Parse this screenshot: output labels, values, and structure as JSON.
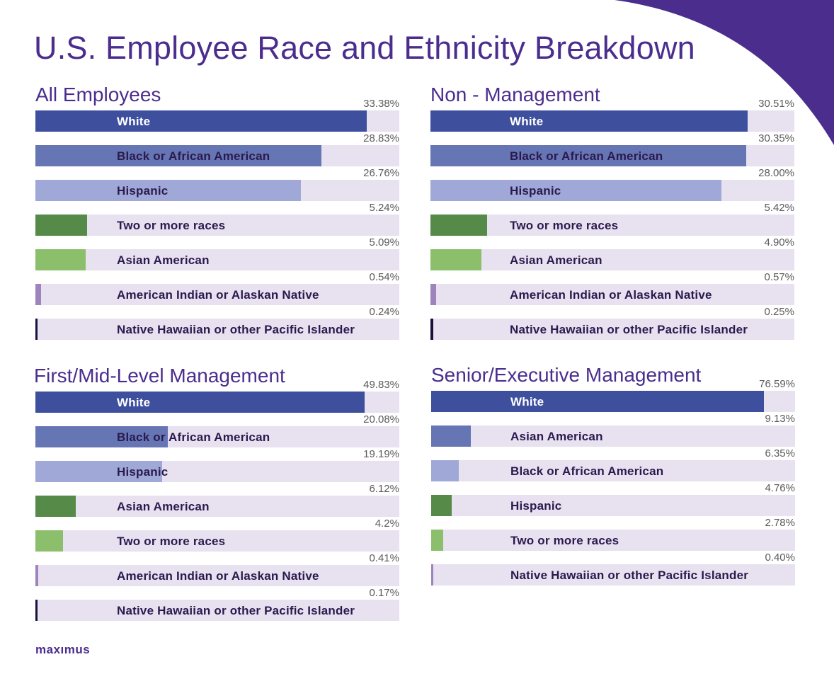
{
  "page": {
    "title": "U.S. Employee Race and Ethnicity Breakdown",
    "logo": "maxımus"
  },
  "colors": {
    "accent": "#4b2d8e",
    "track": "#e8e1ef",
    "label_dark": "#2a1a4e",
    "palette": [
      "#3e4f9e",
      "#6675b4",
      "#9fa8d6",
      "#568a48",
      "#8cbf6c",
      "#9e84bd",
      "#1a1040"
    ]
  },
  "chart_data": [
    {
      "type": "bar",
      "title": "All Employees",
      "categories": [
        "White",
        "Black or African American",
        "Hispanic",
        "Two or more races",
        "Asian American",
        "American Indian or Alaskan Native",
        "Native Hawaiian or other Pacific Islander"
      ],
      "values": [
        33.38,
        28.83,
        26.76,
        5.24,
        5.09,
        0.54,
        0.24
      ],
      "value_labels": [
        "33.38%",
        "28.83%",
        "26.76%",
        "5.24%",
        "5.09%",
        "0.54%",
        "0.24%"
      ],
      "xlim": [
        0,
        36.7
      ]
    },
    {
      "type": "bar",
      "title": "Non - Management",
      "categories": [
        "White",
        "Black or African American",
        "Hispanic",
        "Two or more races",
        "Asian American",
        "American Indian or Alaskan Native",
        "Native Hawaiian or other Pacific Islander"
      ],
      "values": [
        30.51,
        30.35,
        28.0,
        5.42,
        4.9,
        0.57,
        0.25
      ],
      "value_labels": [
        "30.51%",
        "30.35%",
        "28.00%",
        "5.42%",
        "4.90%",
        "0.57%",
        "0.25%"
      ],
      "xlim": [
        0,
        35.0
      ]
    },
    {
      "type": "bar",
      "title": "First/Mid-Level Management",
      "categories": [
        "White",
        "Black or African American",
        "Hispanic",
        "Asian American",
        "Two or more races",
        "American Indian or Alaskan Native",
        "Native Hawaiian or other Pacific Islander"
      ],
      "values": [
        49.83,
        20.08,
        19.19,
        6.12,
        4.2,
        0.41,
        0.17
      ],
      "value_labels": [
        "49.83%",
        "20.08%",
        "19.19%",
        "6.12%",
        "4.2%",
        "0.41%",
        "0.17%"
      ],
      "xlim": [
        0,
        55.1
      ]
    },
    {
      "type": "bar",
      "title": "Senior/Executive Management",
      "categories": [
        "White",
        "Asian American",
        "Black or African American",
        "Hispanic",
        "Two or more races",
        "Native Hawaiian or other Pacific Islander"
      ],
      "values": [
        76.59,
        9.13,
        6.35,
        4.76,
        2.78,
        0.4
      ],
      "value_labels": [
        "76.59%",
        "9.13%",
        "6.35%",
        "4.76%",
        "2.78%",
        "0.40%"
      ],
      "xlim": [
        0,
        83.7
      ]
    }
  ]
}
